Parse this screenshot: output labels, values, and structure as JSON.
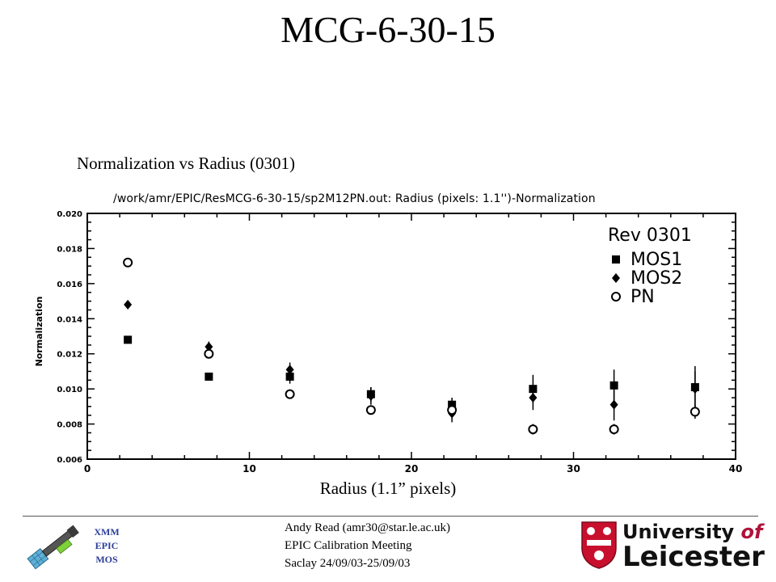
{
  "slide": {
    "title": "MCG-6-30-15",
    "chart_caption": "Normalization vs Radius (0301)",
    "x_caption": "Radius (1.1” pixels)"
  },
  "footer": {
    "mission_lines": [
      "XMM",
      "EPIC",
      "MOS"
    ],
    "author_lines": [
      "Andy Read (amr30@star.le.ac.uk)",
      "EPIC Calibration Meeting",
      "Saclay 24/09/03-25/09/03"
    ],
    "university": {
      "line1_main": "University",
      "line1_of": "of",
      "line2": "Leicester"
    },
    "colors": {
      "mission_text": "#2c3e99",
      "shield_red": "#c8102e",
      "of_text": "#b0123a"
    }
  },
  "chart_data": {
    "type": "scatter",
    "title": "/work/amr/EPIC/ResMCG-6-30-15/sp2M12PN.out: Radius (pixels: 1.1'')-Normalization",
    "xlabel": "",
    "ylabel": "Normalization",
    "xlim": [
      0,
      40
    ],
    "ylim": [
      0.006,
      0.02
    ],
    "x_ticks": [
      0,
      10,
      20,
      30,
      40
    ],
    "y_ticks": [
      0.006,
      0.008,
      0.01,
      0.012,
      0.014,
      0.016,
      0.018,
      0.02
    ],
    "y_tick_labels": [
      "0.006",
      "0.008",
      "0.010",
      "0.012",
      "0.014",
      "0.016",
      "0.018",
      "0.020"
    ],
    "grid": false,
    "legend": {
      "title": "Rev 0301",
      "position": "top-right"
    },
    "x": [
      2.5,
      7.5,
      12.5,
      17.5,
      22.5,
      27.5,
      32.5,
      37.5
    ],
    "series": [
      {
        "name": "MOS1",
        "marker": "square",
        "values": [
          0.0128,
          0.0107,
          0.0107,
          0.0097,
          0.0091,
          0.01,
          0.0102,
          0.0101
        ],
        "error": [
          0.0002,
          0.0002,
          0.0004,
          0.0004,
          0.0004,
          0.0008,
          0.0009,
          0.0012
        ]
      },
      {
        "name": "MOS2",
        "marker": "diamond",
        "values": [
          0.0148,
          0.0124,
          0.0111,
          0.0096,
          0.0086,
          0.0095,
          0.0091,
          0.01
        ],
        "error": [
          0.0002,
          0.0003,
          0.0004,
          0.0005,
          0.0005,
          0.0007,
          0.0009,
          0.001
        ]
      },
      {
        "name": "PN",
        "marker": "circle",
        "values": [
          0.0172,
          0.012,
          0.0097,
          0.0088,
          0.0088,
          0.0077,
          0.0077,
          0.0087
        ],
        "error": [
          0.0002,
          0.0002,
          0.0002,
          0.0002,
          0.0003,
          0.0003,
          0.0003,
          0.0004
        ]
      }
    ]
  }
}
